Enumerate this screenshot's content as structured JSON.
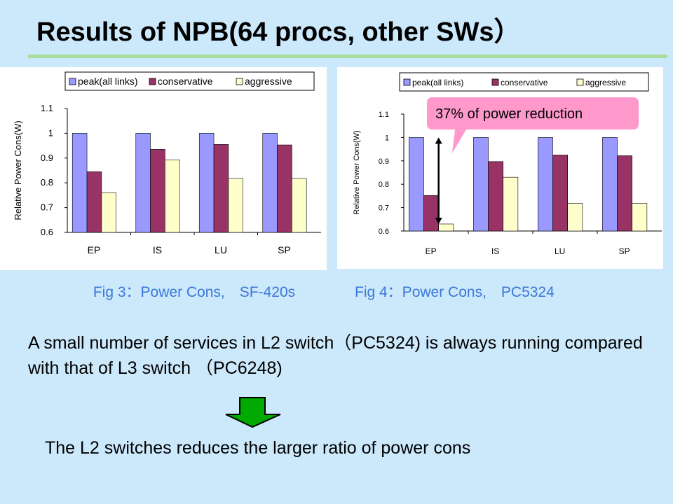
{
  "title": "Results of NPB(64 procs, other SWs）",
  "colors": {
    "peak": "#9999ff",
    "conservative": "#993366",
    "aggressive": "#ffffcc",
    "callout": "#ff99cc",
    "arrow_fill": "#00aa00"
  },
  "chart_data": [
    {
      "type": "bar",
      "categories": [
        "EP",
        "IS",
        "LU",
        "SP"
      ],
      "series": [
        {
          "name": "peak(all links)",
          "values": [
            1.0,
            1.0,
            1.0,
            1.0
          ]
        },
        {
          "name": "conservative",
          "values": [
            0.845,
            0.935,
            0.955,
            0.953
          ]
        },
        {
          "name": "aggressive",
          "values": [
            0.76,
            0.893,
            0.818,
            0.818
          ]
        }
      ],
      "ylabel": "Relative Power Cons(W)",
      "ylim": [
        0.6,
        1.1
      ],
      "yticks": [
        "0.6",
        "0.7",
        "0.8",
        "0.9",
        "1",
        "1.1"
      ],
      "legend": "top"
    },
    {
      "type": "bar",
      "categories": [
        "EP",
        "IS",
        "LU",
        "SP"
      ],
      "series": [
        {
          "name": "peak(all links)",
          "values": [
            1.0,
            1.0,
            1.0,
            1.0
          ]
        },
        {
          "name": "conservative",
          "values": [
            0.752,
            0.897,
            0.925,
            0.922
          ]
        },
        {
          "name": "aggressive",
          "values": [
            0.63,
            0.83,
            0.718,
            0.718
          ]
        }
      ],
      "ylabel": "Relative Power Cons(W)",
      "ylim": [
        0.6,
        1.1
      ],
      "yticks": [
        "0.6",
        "0.7",
        "0.8",
        "0.9",
        "1",
        "1.1"
      ],
      "legend": "top",
      "annotation": "37% of power reduction"
    }
  ],
  "captions": {
    "fig3": "Fig 3：Power Cons,　SF-420s",
    "fig4": "Fig 4：Power Cons,　PC5324"
  },
  "body": "A small number of services in L2 switch（PC5324) is always running compared with that of L3 switch （PC6248)",
  "conclusion": "The L2 switches reduces the larger ratio of power cons"
}
